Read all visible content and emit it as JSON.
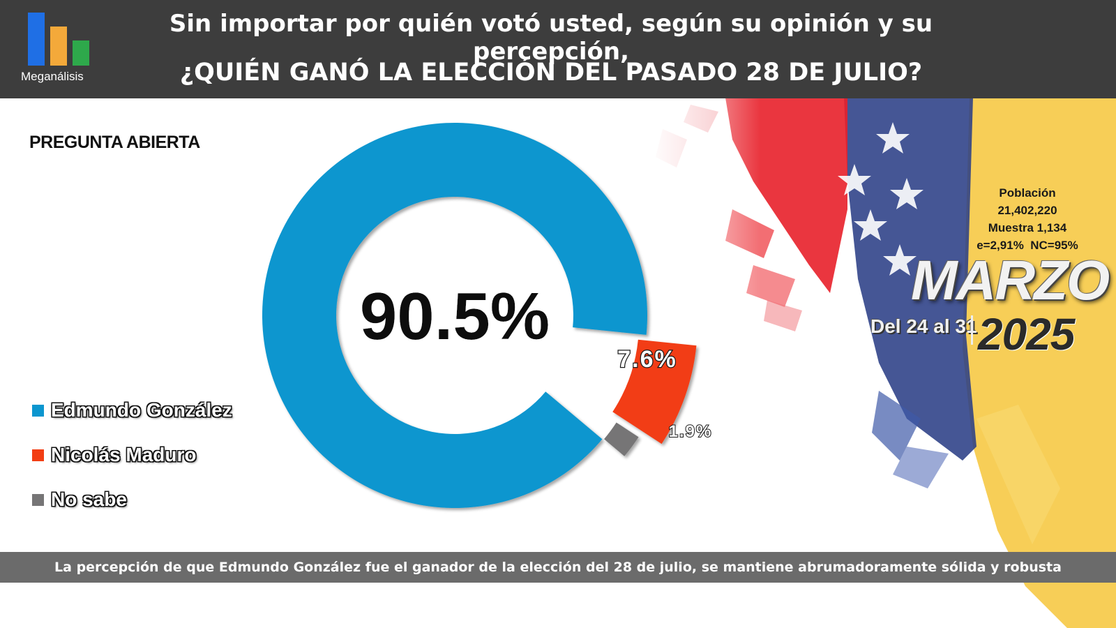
{
  "header": {
    "logo_text": "Meganálisis",
    "title_line1": "Sin importar por quién votó usted, según su opinión y su percepción,",
    "title_line2": "¿QUIÉN GANÓ LA ELECCIÓN DEL PASADO 28 DE JULIO?"
  },
  "question_type": "PREGUNTA ABIERTA",
  "info": {
    "poblacion_label": "Población",
    "poblacion_value": "21,402,220",
    "muestra": "Muestra 1,134",
    "error": "e=2,91%  NC=95%",
    "month": "MARZO",
    "dates": "Del 24 al 31",
    "year": "2025"
  },
  "footer": "La percepción de que Edmundo González fue el ganador de la elección del 28 de julio, se mantiene abrumadoramente sólida y robusta",
  "colors": {
    "edmundo": "#0b96cf",
    "maduro": "#f23e14",
    "no_sabe": "#767576"
  },
  "chart_data": {
    "type": "pie",
    "categories": [
      "Edmundo González",
      "Nicolás Maduro",
      "No sabe"
    ],
    "values": [
      90.5,
      7.6,
      1.9
    ],
    "value_labels": [
      "90.5%",
      "7.6%",
      "1.9%"
    ],
    "title": "",
    "legend_position": "left"
  }
}
